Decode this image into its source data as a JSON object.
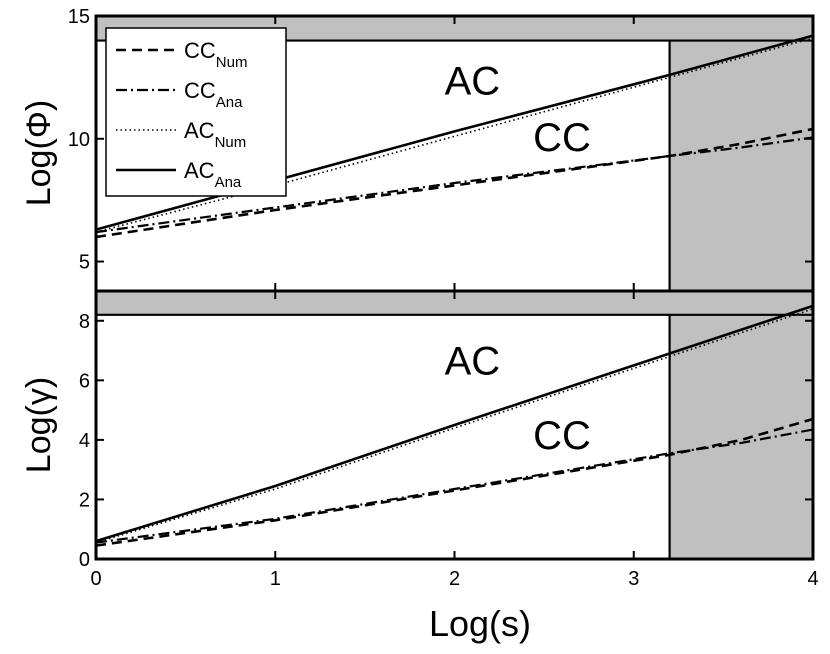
{
  "chart_data": [
    {
      "panel": "top",
      "type": "line",
      "ylabel_base": "Log(",
      "ylabel_sym": "Φ",
      "ylabel_end": ")",
      "ylim": [
        3.8,
        15
      ],
      "yticks": [
        5,
        10,
        15
      ],
      "xlim": [
        0,
        4
      ],
      "shade_x": 3.2,
      "shade_y": 14,
      "series": [
        {
          "name": "CC_Num",
          "style": "dashed",
          "x": [
            0,
            1,
            2,
            3.2,
            3.6,
            4
          ],
          "y": [
            6.0,
            7.1,
            8.1,
            9.3,
            9.8,
            10.4
          ]
        },
        {
          "name": "CC_Ana",
          "style": "dashdot",
          "x": [
            0,
            1,
            2,
            3.2,
            3.6,
            4
          ],
          "y": [
            6.2,
            7.2,
            8.2,
            9.3,
            9.65,
            10.05
          ]
        },
        {
          "name": "AC_Num",
          "style": "dotted",
          "x": [
            0,
            1,
            2,
            3.2,
            4
          ],
          "y": [
            6.2,
            8.1,
            10.1,
            12.5,
            14.1
          ]
        },
        {
          "name": "AC_Ana",
          "style": "solid",
          "x": [
            0,
            1,
            2,
            3.2,
            4
          ],
          "y": [
            6.3,
            8.3,
            10.3,
            12.6,
            14.2
          ]
        }
      ],
      "annotations": [
        {
          "text": "AC",
          "x": 2.1,
          "y": 11.8
        },
        {
          "text": "CC",
          "x": 2.6,
          "y": 9.5
        }
      ]
    },
    {
      "panel": "bottom",
      "type": "line",
      "ylabel_base": "Log(",
      "ylabel_sym": "γ",
      "ylabel_end": ")",
      "xlabel": "Log(s)",
      "ylim": [
        0,
        9
      ],
      "yticks": [
        0,
        2,
        4,
        6,
        8
      ],
      "xticks": [
        0,
        1,
        2,
        3,
        4
      ],
      "xlim": [
        0,
        4
      ],
      "shade_x": 3.2,
      "shade_y": 8.2,
      "series": [
        {
          "name": "CC_Num",
          "style": "dashed",
          "x": [
            0,
            1,
            2,
            3.2,
            3.6,
            4
          ],
          "y": [
            0.45,
            1.3,
            2.3,
            3.5,
            4.0,
            4.7
          ]
        },
        {
          "name": "CC_Ana",
          "style": "dashdot",
          "x": [
            0,
            1,
            2,
            3.2,
            3.6,
            4
          ],
          "y": [
            0.55,
            1.35,
            2.35,
            3.55,
            3.9,
            4.35
          ]
        },
        {
          "name": "AC_Num",
          "style": "dotted",
          "x": [
            0,
            1,
            2,
            3.2,
            4
          ],
          "y": [
            0.55,
            2.35,
            4.4,
            6.8,
            8.4
          ]
        },
        {
          "name": "AC_Ana",
          "style": "solid",
          "x": [
            0,
            1,
            2,
            3.2,
            4
          ],
          "y": [
            0.6,
            2.45,
            4.5,
            6.9,
            8.5
          ]
        }
      ],
      "annotations": [
        {
          "text": "AC",
          "x": 2.1,
          "y": 6.2
        },
        {
          "text": "CC",
          "x": 2.6,
          "y": 3.7
        }
      ]
    }
  ],
  "legend": {
    "placement": "top-left",
    "items": [
      {
        "style": "dashed",
        "main": "CC",
        "sub": "Num"
      },
      {
        "style": "dashdot",
        "main": "CC",
        "sub": "Ana"
      },
      {
        "style": "dotted",
        "main": "AC",
        "sub": "Num"
      },
      {
        "style": "solid",
        "main": "AC",
        "sub": "Ana"
      }
    ]
  },
  "colors": {
    "shade": "#c0c0c0",
    "line": "#000000",
    "background": "#ffffff"
  }
}
